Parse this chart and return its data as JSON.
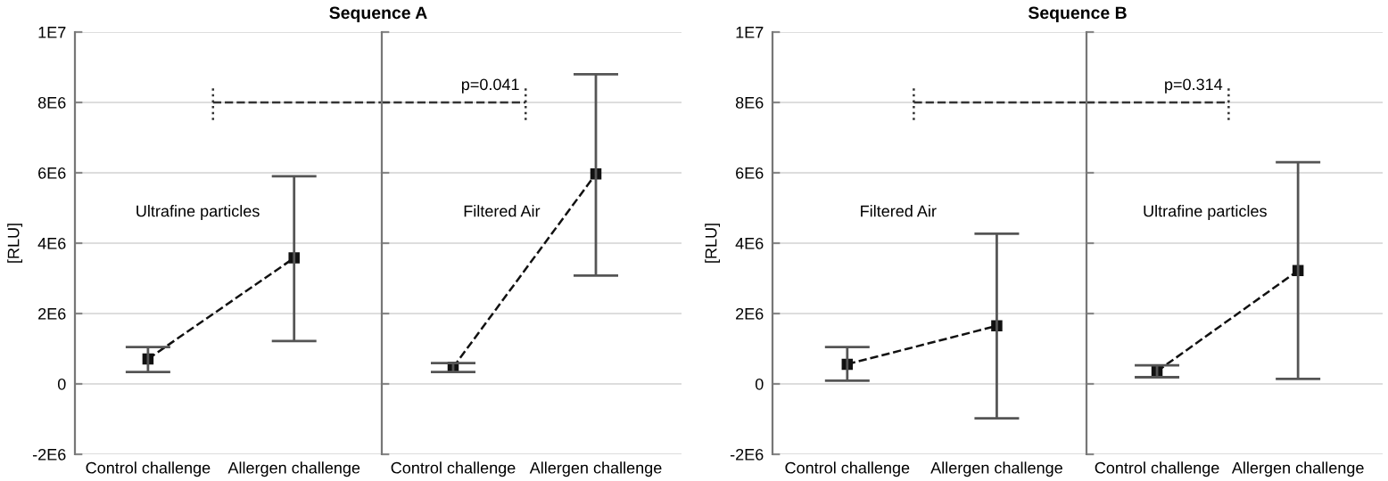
{
  "chart_data": [
    {
      "type": "line",
      "title": "Sequence A",
      "ylabel": "[RLU]",
      "categories": [
        "Control challenge",
        "Allergen challenge"
      ],
      "series": [
        {
          "color": "#111111",
          "values": [
            710000,
            3580000
          ],
          "errors": [
            [
              340000,
              1050000
            ],
            [
              1220000,
              5900000
            ]
          ]
        }
      ],
      "annotations": [
        "Ultrafine particles"
      ],
      "ref_lines": [
        {
          "axis": "y",
          "value": 8000000,
          "color": "#333333",
          "line_style": "dashed"
        }
      ],
      "ylim": [
        -2000000,
        10000000
      ],
      "yticks": [
        {
          "value": -2000000,
          "label": "-2E6"
        },
        0,
        {
          "value": 2000000,
          "label": "2E6"
        },
        {
          "value": 4000000,
          "label": "4E6"
        },
        {
          "value": 6000000,
          "label": "6E6"
        },
        {
          "value": 8000000,
          "label": "8E6"
        },
        {
          "value": 10000000,
          "label": "1E7"
        }
      ],
      "grid": "y",
      "marker": "square",
      "line_style": "dashed"
    },
    {
      "type": "line",
      "categories": [
        "Control challenge",
        "Allergen challenge"
      ],
      "series": [
        {
          "color": "#111111",
          "values": [
            470000,
            5970000
          ],
          "errors": [
            [
              340000,
              590000
            ],
            [
              3080000,
              8800000
            ]
          ]
        }
      ],
      "annotations": [
        "Filtered Air",
        "p=0.041"
      ],
      "ref_lines": [
        {
          "axis": "y",
          "value": 8000000,
          "color": "#333333",
          "line_style": "dashed"
        }
      ],
      "ylim": [
        -2000000,
        10000000
      ],
      "yticks": [
        {
          "value": -2000000,
          "label": null
        },
        {
          "value": 0,
          "label": null
        },
        {
          "value": 2000000,
          "label": null
        },
        {
          "value": 4000000,
          "label": null
        },
        {
          "value": 6000000,
          "label": null
        },
        {
          "value": 8000000,
          "label": null
        },
        {
          "value": 10000000,
          "label": null
        }
      ],
      "tick_labels": "x",
      "grid": "y",
      "marker": "square",
      "line_style": "dashed"
    },
    {
      "type": "line",
      "title": "Sequence B",
      "ylabel": "[RLU]",
      "categories": [
        "Control challenge",
        "Allergen challenge"
      ],
      "series": [
        {
          "color": "#111111",
          "values": [
            560000,
            1650000
          ],
          "errors": [
            [
              90000,
              1050000
            ],
            [
              -980000,
              4270000
            ]
          ]
        }
      ],
      "annotations": [
        "Filtered Air"
      ],
      "ref_lines": [
        {
          "axis": "y",
          "value": 8000000,
          "color": "#333333",
          "line_style": "dashed"
        }
      ],
      "ylim": [
        -2000000,
        10000000
      ],
      "yticks": [
        {
          "value": -2000000,
          "label": "-2E6"
        },
        0,
        {
          "value": 2000000,
          "label": "2E6"
        },
        {
          "value": 4000000,
          "label": "4E6"
        },
        {
          "value": 6000000,
          "label": "6E6"
        },
        {
          "value": 8000000,
          "label": "8E6"
        },
        {
          "value": 10000000,
          "label": "1E7"
        }
      ],
      "grid": "y",
      "marker": "square",
      "line_style": "dashed"
    },
    {
      "type": "line",
      "categories": [
        "Control challenge",
        "Allergen challenge"
      ],
      "series": [
        {
          "color": "#111111",
          "values": [
            360000,
            3220000
          ],
          "errors": [
            [
              190000,
              530000
            ],
            [
              140000,
              6300000
            ]
          ]
        }
      ],
      "annotations": [
        "Ultrafine particles",
        "p=0.314"
      ],
      "ref_lines": [
        {
          "axis": "y",
          "value": 8000000,
          "color": "#333333",
          "line_style": "dashed"
        }
      ],
      "ylim": [
        -2000000,
        10000000
      ],
      "yticks": [
        {
          "value": -2000000,
          "label": null
        },
        {
          "value": 0,
          "label": null
        },
        {
          "value": 2000000,
          "label": null
        },
        {
          "value": 4000000,
          "label": null
        },
        {
          "value": 6000000,
          "label": null
        },
        {
          "value": 8000000,
          "label": null
        },
        {
          "value": 10000000,
          "label": null
        }
      ],
      "tick_labels": "x",
      "grid": "y",
      "marker": "square",
      "line_style": "dashed"
    }
  ]
}
